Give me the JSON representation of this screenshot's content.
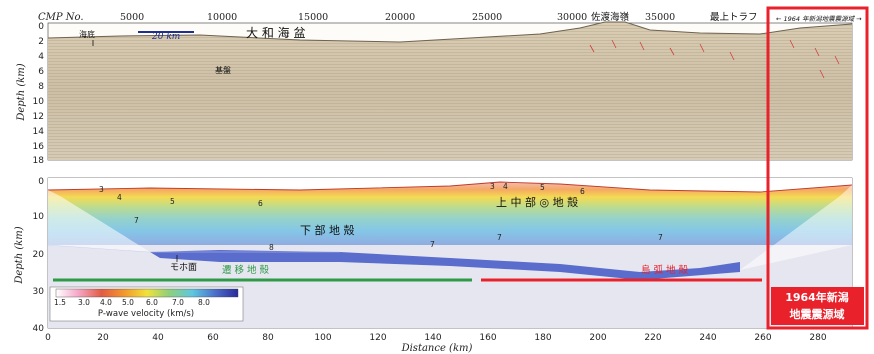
{
  "top_panel": {
    "cmp_label": "CMP No.",
    "cmp_ticks": [
      "5000",
      "10000",
      "15000",
      "20000",
      "25000",
      "30000",
      "35000"
    ],
    "depth_ticks": [
      "0",
      "2",
      "4",
      "6",
      "8",
      "10",
      "12",
      "14",
      "16",
      "18"
    ],
    "ylabel": "Depth (km)",
    "scale_bar_label": "20 km",
    "basin_label": "大 和 海 盆",
    "seafloor_label": "海底",
    "basement_label": "基盤",
    "ridge_label": "佐渡海嶺",
    "trough_label": "最上トラフ",
    "rupture_arrow_label": "← 1964 年新潟地震震源域 →"
  },
  "bottom_panel": {
    "depth_ticks": [
      "0",
      "10",
      "20",
      "30",
      "40"
    ],
    "distance_ticks": [
      "0",
      "20",
      "40",
      "60",
      "80",
      "100",
      "120",
      "140",
      "160",
      "180",
      "200",
      "220",
      "240",
      "260",
      "280"
    ],
    "xlabel": "Distance (km)",
    "ylabel": "Depth (km)",
    "lower_crust_label": "下 部 地 殻",
    "upper_crust_label": "上 中 部 ◎ 地 殻",
    "moho_label": "モホ面",
    "transitional_crust_label": "遷 移 地 殻",
    "island_arc_label": "島 弧 地 殻",
    "contour_labels": [
      "3",
      "4",
      "5",
      "6",
      "7",
      "8",
      "3",
      "4",
      "5",
      "6",
      "7",
      "7",
      "7"
    ],
    "colorbar_ticks": [
      "1.5",
      "3.0",
      "4.0",
      "5.0",
      "6.0",
      "7.0",
      "8.0"
    ],
    "colorbar_label": "P-wave velocity (km/s)",
    "callout_line1": "1964年新潟",
    "callout_line2": "地震震源域"
  },
  "colors": {
    "highlight_red": "#e8212b",
    "transitional_green": "#2e9a47",
    "scale_blue": "#1e2f8c",
    "velocity_scale": [
      "#ffffff",
      "#f6a8c9",
      "#e35a45",
      "#f39b2b",
      "#f2e23a",
      "#8fd07a",
      "#5fc7e0",
      "#4a6cc8",
      "#2a2a9c"
    ]
  }
}
